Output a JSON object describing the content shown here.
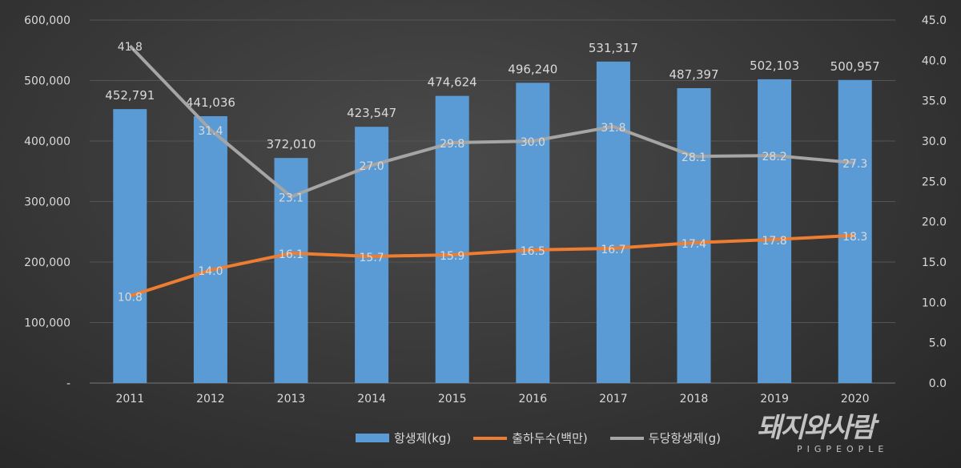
{
  "chart_data": {
    "type": "bar+line",
    "categories": [
      "2011",
      "2012",
      "2013",
      "2014",
      "2015",
      "2016",
      "2017",
      "2018",
      "2019",
      "2020"
    ],
    "series": [
      {
        "name": "항생제(kg)",
        "type": "bar",
        "axis": "left",
        "color": "#5b9bd5",
        "values": [
          452791,
          441036,
          372010,
          423547,
          474624,
          496240,
          531317,
          487397,
          502103,
          500957
        ],
        "labels": [
          "452,791",
          "441,036",
          "372,010",
          "423,547",
          "474,624",
          "496,240",
          "531,317",
          "487,397",
          "502,103",
          "500,957"
        ]
      },
      {
        "name": "출하두수(백만)",
        "type": "line",
        "axis": "right",
        "color": "#ed7d31",
        "values": [
          10.8,
          14.0,
          16.1,
          15.7,
          15.9,
          16.5,
          16.7,
          17.4,
          17.8,
          18.3
        ],
        "labels": [
          "10.8",
          "14.0",
          "16.1",
          "15.7",
          "15.9",
          "16.5",
          "16.7",
          "17.4",
          "17.8",
          "18.3"
        ]
      },
      {
        "name": "두당항생제(g)",
        "type": "line",
        "axis": "right",
        "color": "#a5a5a5",
        "values": [
          41.8,
          31.4,
          23.1,
          27.0,
          29.8,
          30.0,
          31.8,
          28.1,
          28.2,
          27.3
        ],
        "labels": [
          "41.8",
          "31.4",
          "23.1",
          "27.0",
          "29.8",
          "30.0",
          "31.8",
          "28.1",
          "28.2",
          "27.3"
        ]
      }
    ],
    "y_left": {
      "range": [
        0,
        600000
      ],
      "ticks": [
        "-",
        "100,000",
        "200,000",
        "300,000",
        "400,000",
        "500,000",
        "600,000"
      ]
    },
    "y_right": {
      "range": [
        0,
        45
      ],
      "ticks": [
        "0.0",
        "5.0",
        "10.0",
        "15.0",
        "20.0",
        "25.0",
        "30.0",
        "35.0",
        "40.0",
        "45.0"
      ]
    },
    "grid": true,
    "legend": "bottom"
  },
  "watermark": {
    "korean": "돼지와사람",
    "english": "PIGPEOPLE"
  }
}
